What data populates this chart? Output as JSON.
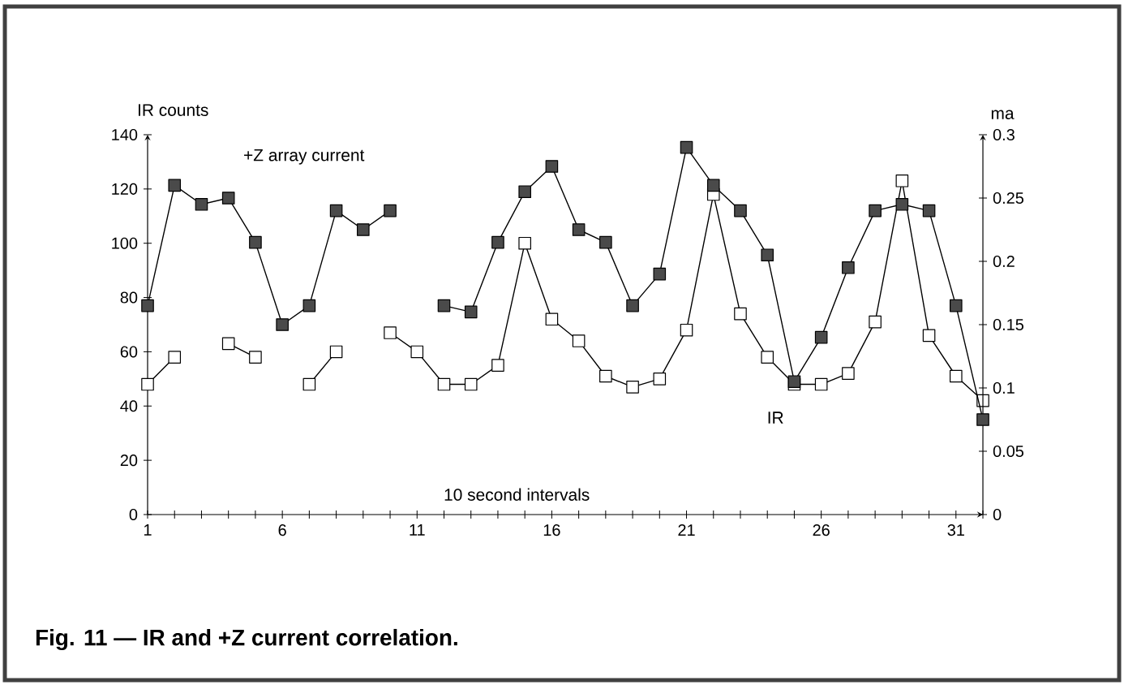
{
  "chart_data": {
    "type": "line",
    "title": "**Fig. 11 — IR and +Z current correlation.**",
    "xlabel": "10 second intervals",
    "ylabel": "IR counts",
    "y2label": "ma",
    "x": [
      1,
      2,
      3,
      4,
      5,
      6,
      7,
      8,
      9,
      10,
      11,
      12,
      13,
      14,
      15,
      16,
      17,
      18,
      19,
      20,
      21,
      22,
      23,
      24,
      25,
      26,
      27,
      28,
      29,
      30,
      31,
      32
    ],
    "series": [
      {
        "name": "+Z array current",
        "color": "#4a4a4a",
        "axis": "y2",
        "values": [
          0.165,
          0.26,
          0.245,
          0.25,
          0.215,
          0.15,
          0.165,
          0.24,
          0.225,
          0.24,
          null,
          0.165,
          0.16,
          0.215,
          0.255,
          0.275,
          0.225,
          0.215,
          0.165,
          0.19,
          0.29,
          0.26,
          0.24,
          0.205,
          0.105,
          0.14,
          0.195,
          0.24,
          0.245,
          0.24,
          0.165,
          0.075
        ]
      },
      {
        "name": "IR",
        "color": "#ffffff",
        "values": [
          48,
          58,
          null,
          63,
          58,
          null,
          48,
          60,
          null,
          67,
          60,
          48,
          48,
          55,
          100,
          72,
          64,
          51,
          47,
          50,
          68,
          118,
          74,
          58,
          48,
          48,
          52,
          71,
          123,
          66,
          51,
          42
        ]
      }
    ],
    "xlim": [
      1,
      32
    ],
    "xticks": [
      1,
      {
        "value": 2,
        "label": null
      },
      {
        "value": 3,
        "label": null
      },
      {
        "value": 4,
        "label": null
      },
      {
        "value": 5,
        "label": null
      },
      6,
      {
        "value": 7,
        "label": null
      },
      {
        "value": 8,
        "label": null
      },
      {
        "value": 9,
        "label": null
      },
      {
        "value": 10,
        "label": null
      },
      11,
      {
        "value": 12,
        "label": null
      },
      {
        "value": 13,
        "label": null
      },
      {
        "value": 14,
        "label": null
      },
      {
        "value": 15,
        "label": null
      },
      16,
      {
        "value": 17,
        "label": null
      },
      {
        "value": 18,
        "label": null
      },
      {
        "value": 19,
        "label": null
      },
      {
        "value": 20,
        "label": null
      },
      21,
      {
        "value": 22,
        "label": null
      },
      {
        "value": 23,
        "label": null
      },
      {
        "value": 24,
        "label": null
      },
      {
        "value": 25,
        "label": null
      },
      26,
      {
        "value": 27,
        "label": null
      },
      {
        "value": 28,
        "label": null
      },
      {
        "value": 29,
        "label": null
      },
      {
        "value": 30,
        "label": null
      },
      31,
      {
        "value": 32,
        "label": null
      }
    ],
    "ylim": [
      0,
      140
    ],
    "yticks": [
      0,
      20,
      40,
      60,
      80,
      100,
      120,
      140
    ],
    "y2lim": [
      0,
      0.3
    ],
    "y2ticks": [
      0,
      0.05,
      0.1,
      0.15,
      0.2,
      0.25,
      0.3
    ],
    "marker": "square",
    "line_style": "solid",
    "grid": false
  }
}
